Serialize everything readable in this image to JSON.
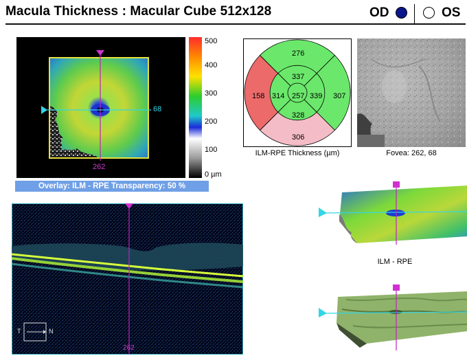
{
  "header": {
    "title": "Macula Thickness : Macular Cube 512x128",
    "od_label": "OD",
    "os_label": "OS",
    "selected_eye": "OD"
  },
  "thickness_map": {
    "crosshair_x_value": "262",
    "crosshair_y_value": "68",
    "overlay_caption": "Overlay: ILM - RPE  Transparency: 50 %"
  },
  "color_scale": {
    "labels": [
      "500",
      "400",
      "300",
      "200",
      "100",
      "0 µm"
    ]
  },
  "etdrs": {
    "caption": "ILM-RPE Thickness (µm)",
    "center": "257",
    "inner": {
      "superior": "337",
      "temporal": "314",
      "nasal": "339",
      "inferior": "328"
    },
    "outer": {
      "superior": "276",
      "temporal": "158",
      "nasal": "307",
      "inferior": "306"
    },
    "colors": {
      "green": "#6be86b",
      "red": "#ec6a6a",
      "pink": "#f4bcc6"
    }
  },
  "fundus": {
    "caption": "Fovea: 262, 68"
  },
  "bscan": {
    "compass_left": "T",
    "compass_right": "N",
    "slice_label": "262"
  },
  "surface": {
    "caption": "ILM - RPE"
  },
  "colors": {
    "accent_magenta": "#c020c0",
    "accent_cyan": "#33d6e6",
    "overlay_bar": "#6f9fe6",
    "od_dot": "#0a168c"
  }
}
